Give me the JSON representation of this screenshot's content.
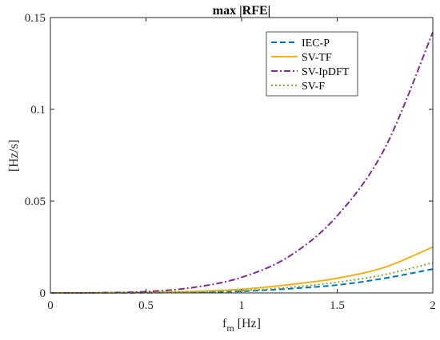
{
  "chart_data": {
    "type": "line",
    "title_prefix": "max |",
    "title_bold": "RFE",
    "title_suffix": "|",
    "xlabel_main": "f",
    "xlabel_sub": "m",
    "xlabel_unit": " [Hz]",
    "ylabel": "[Hz/s]",
    "xlim": [
      0,
      2
    ],
    "ylim": [
      0,
      0.15
    ],
    "x_ticks": [
      0,
      0.5,
      1,
      1.5,
      2
    ],
    "x_tick_labels": [
      "0",
      "0.5",
      "1",
      "1.5",
      "2"
    ],
    "y_ticks": [
      0,
      0.05,
      0.1,
      0.15
    ],
    "y_tick_labels": [
      "0",
      "0.05",
      "0.1",
      "0.15"
    ],
    "grid": false,
    "legend_position": "top-right",
    "x": [
      0,
      0.25,
      0.5,
      0.75,
      1.0,
      1.25,
      1.5,
      1.75,
      2.0
    ],
    "series": [
      {
        "name": "IEC-P",
        "color": "#0072BD",
        "dash": "dashed",
        "values": [
          0,
          3e-05,
          0.0001,
          0.0004,
          0.0009,
          0.0023,
          0.0043,
          0.008,
          0.013
        ]
      },
      {
        "name": "SV-TF",
        "color": "#EDB120",
        "dash": "solid",
        "values": [
          0,
          5e-05,
          0.0003,
          0.0008,
          0.002,
          0.0045,
          0.008,
          0.014,
          0.025
        ]
      },
      {
        "name": "SV-IpDFT",
        "color": "#7E2F8E",
        "dash": "dashdot",
        "values": [
          0,
          0.0001,
          0.0007,
          0.003,
          0.0085,
          0.02,
          0.042,
          0.079,
          0.142
        ]
      },
      {
        "name": "SV-F",
        "color": "#77AC30",
        "dash": "dotted",
        "values": [
          0,
          3e-05,
          0.0002,
          0.0005,
          0.0012,
          0.003,
          0.0058,
          0.01,
          0.0165
        ]
      }
    ]
  }
}
